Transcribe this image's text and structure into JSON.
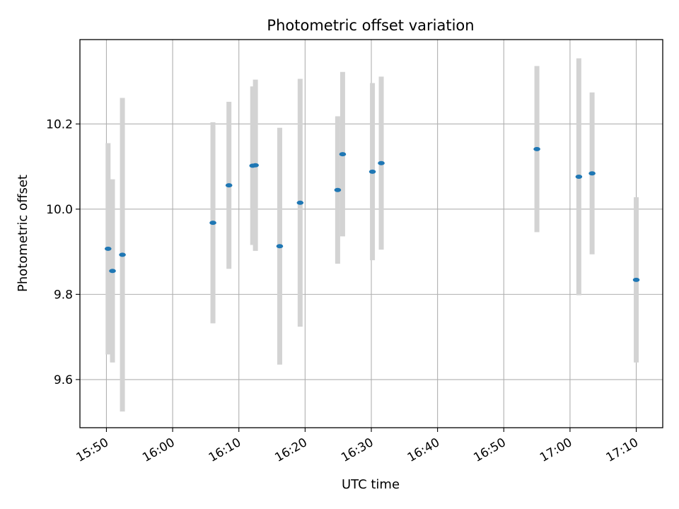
{
  "chart_data": {
    "type": "scatter",
    "title": "Photometric offset variation",
    "xlabel": "UTC time",
    "ylabel": "Photometric offset",
    "x_is_time": true,
    "x_ticks": [
      "15:50",
      "16:00",
      "16:10",
      "16:20",
      "16:30",
      "16:40",
      "16:50",
      "17:00",
      "17:10"
    ],
    "y_ticks": [
      9.6,
      9.8,
      10.0,
      10.2
    ],
    "xlim": [
      "15:46",
      "17:14"
    ],
    "ylim": [
      9.487,
      10.398
    ],
    "grid": true,
    "series": [
      {
        "points": [
          {
            "x": "15:50:15",
            "y": 9.907,
            "yerr": 0.248
          },
          {
            "x": "15:50:55",
            "y": 9.855,
            "yerr": 0.215
          },
          {
            "x": "15:52:25",
            "y": 9.893,
            "yerr": 0.368
          },
          {
            "x": "16:06:05",
            "y": 9.968,
            "yerr": 0.236
          },
          {
            "x": "16:08:30",
            "y": 10.056,
            "yerr": 0.196
          },
          {
            "x": "16:12:05",
            "y": 10.102,
            "yerr": 0.186
          },
          {
            "x": "16:12:30",
            "y": 10.103,
            "yerr": 0.201
          },
          {
            "x": "16:16:10",
            "y": 9.913,
            "yerr": 0.278
          },
          {
            "x": "16:19:15",
            "y": 10.015,
            "yerr": 0.291
          },
          {
            "x": "16:24:55",
            "y": 10.045,
            "yerr": 0.173
          },
          {
            "x": "16:25:40",
            "y": 10.129,
            "yerr": 0.193
          },
          {
            "x": "16:30:10",
            "y": 10.088,
            "yerr": 0.208
          },
          {
            "x": "16:31:30",
            "y": 10.108,
            "yerr": 0.203
          },
          {
            "x": "16:55:00",
            "y": 10.141,
            "yerr": 0.195
          },
          {
            "x": "17:01:20",
            "y": 10.076,
            "yerr": 0.278
          },
          {
            "x": "17:03:20",
            "y": 10.084,
            "yerr": 0.19
          },
          {
            "x": "17:10:00",
            "y": 9.834,
            "yerr": 0.194
          }
        ],
        "marker_color": "#1f77b4",
        "errorbar_color": "#d3d3d3"
      }
    ]
  }
}
